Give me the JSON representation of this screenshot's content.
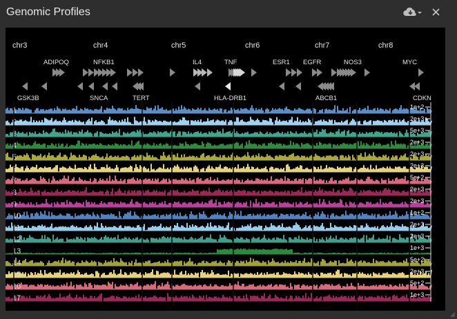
{
  "window": {
    "title": "Genomic Profiles"
  },
  "toolbar": {
    "download_icon": "cloud-download-icon",
    "menu_icon": "caret-down-icon",
    "close_icon": "close-icon"
  },
  "chromosomes": [
    "chr3",
    "chr4",
    "chr5",
    "chr6",
    "chr7",
    "chr8"
  ],
  "genes_top": [
    "ADIPOQ",
    "NFKB1",
    "IL4",
    "TNF",
    "ESR1",
    "EGFR",
    "NOS3",
    "MYC"
  ],
  "genes_bottom": [
    "GSK3B",
    "SNCA",
    "TERT",
    "HLA-DRB1",
    "ABCB1",
    "CDKN"
  ],
  "tracks": [
    {
      "label": "1",
      "scale": "1e+2",
      "color": "#5b8fc7"
    },
    {
      "label": "2",
      "scale": "2e+3",
      "color": "#9cd3f0"
    },
    {
      "label": "3",
      "scale": "5e+3",
      "color": "#3fa58f"
    },
    {
      "label": "4",
      "scale": "2e+3",
      "color": "#2e8b3e"
    },
    {
      "label": "5",
      "scale": "2e+3",
      "color": "#a9a83c"
    },
    {
      "label": "6",
      "scale": "2e+3",
      "color": "#e5d57a"
    },
    {
      "label": "7",
      "scale": "5e+2",
      "color": "#d9687a"
    },
    {
      "label": "8",
      "scale": "2e+3",
      "color": "#9b2757"
    },
    {
      "label": "9",
      "scale": "2e+3",
      "color": "#b6409a"
    },
    {
      "label": "10",
      "scale": "1e+2",
      "color": "#4f83c0"
    },
    {
      "label": "11",
      "scale": "2e+3",
      "color": "#97cdec"
    },
    {
      "label": "12",
      "scale": "2e+3",
      "color": "#3ea08b"
    },
    {
      "label": "13",
      "scale": "1e+3",
      "color": "#2c8a3d"
    },
    {
      "label": "14",
      "scale": "5e+2",
      "color": "#a3a23a"
    },
    {
      "label": "15",
      "scale": "2e+3",
      "color": "#e4d37a"
    },
    {
      "label": "16",
      "scale": "5e+2",
      "color": "#d9687a"
    },
    {
      "label": "17",
      "scale": "1e+3",
      "color": "#9b2757"
    }
  ]
}
